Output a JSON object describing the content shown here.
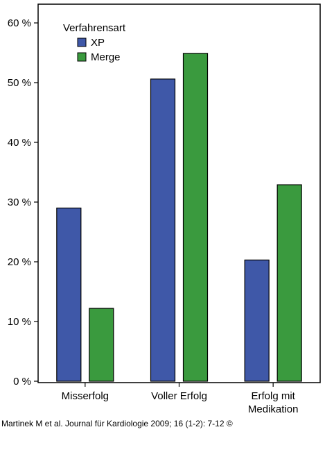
{
  "chart_data": {
    "type": "bar",
    "categories": [
      "Misserfolg",
      "Voller Erfolg",
      "Erfolg mit Medikation"
    ],
    "category_lines": [
      [
        "Misserfolg"
      ],
      [
        "Voller Erfolg"
      ],
      [
        "Erfolg mit",
        "Medikation"
      ]
    ],
    "series": [
      {
        "name": "XP",
        "values": [
          29.0,
          50.6,
          20.3
        ],
        "color": "#3f58a8"
      },
      {
        "name": "Merge",
        "values": [
          12.2,
          54.9,
          32.9
        ],
        "color": "#3a9a3e"
      }
    ],
    "legend_title": "Verfahrensart",
    "ylim": [
      0,
      60
    ],
    "yticks": [
      0,
      10,
      20,
      30,
      40,
      50,
      60
    ],
    "ytick_labels": [
      "0 %",
      "10 %",
      "20 %",
      "30 %",
      "40 %",
      "50 %",
      "60 %"
    ],
    "grid": false,
    "legend_position": "top-left",
    "xlabel": "",
    "ylabel": ""
  },
  "citation": "Martinek M et al. Journal für Kardiologie 2009; 16 (1-2): 7-12 ©"
}
